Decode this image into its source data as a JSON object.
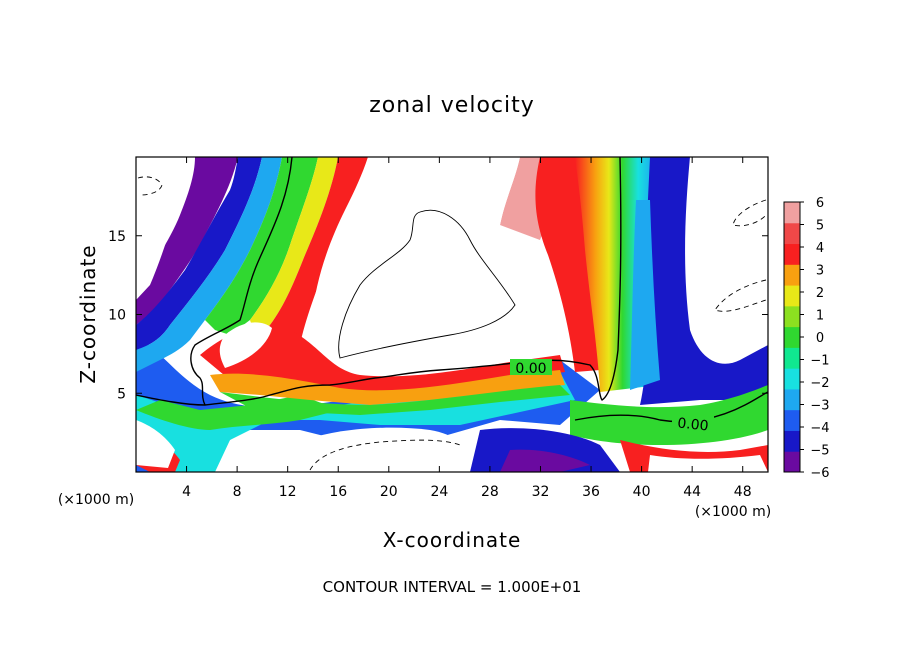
{
  "chart_data": {
    "type": "heatmap",
    "title": "zonal velocity",
    "xlabel": "X-coordinate",
    "ylabel": "Z-coordinate",
    "x_unit": "(×1000 m)",
    "z_unit": "(×1000 m)",
    "xlim": [
      0,
      50
    ],
    "ylim": [
      0,
      20
    ],
    "x_ticks": [
      4,
      8,
      12,
      16,
      20,
      24,
      28,
      32,
      36,
      40,
      44,
      48
    ],
    "y_ticks": [
      5,
      10,
      15
    ],
    "colorbar": {
      "ticks": [
        6,
        5,
        4,
        3,
        2,
        1,
        0,
        -1,
        -2,
        -3,
        -4,
        -5,
        -6
      ],
      "range": [
        -6,
        6
      ],
      "colors": [
        "#6a0aa0",
        "#1818c8",
        "#1e5cf0",
        "#1ea8f0",
        "#18e0e0",
        "#10e890",
        "#30d830",
        "#8ce020",
        "#e8e818",
        "#f8a010",
        "#f82020",
        "#f04848",
        "#f0a0a0"
      ]
    },
    "contour_labels": [
      "0.00",
      "0.00"
    ],
    "footer": "CONTOUR INTERVAL = 1.000E+01",
    "velocity_bands": [
      {
        "x_center": 6,
        "value": -5
      },
      {
        "x_center": 8,
        "value": -1
      },
      {
        "x_center": 11,
        "value": 1
      },
      {
        "x_center": 14,
        "value": 4
      },
      {
        "x_center": 30,
        "value": 5
      },
      {
        "x_center": 36,
        "value": 2
      },
      {
        "x_center": 38,
        "value": 0
      },
      {
        "x_center": 40,
        "value": -2
      },
      {
        "x_center": 42,
        "value": -5
      }
    ]
  }
}
